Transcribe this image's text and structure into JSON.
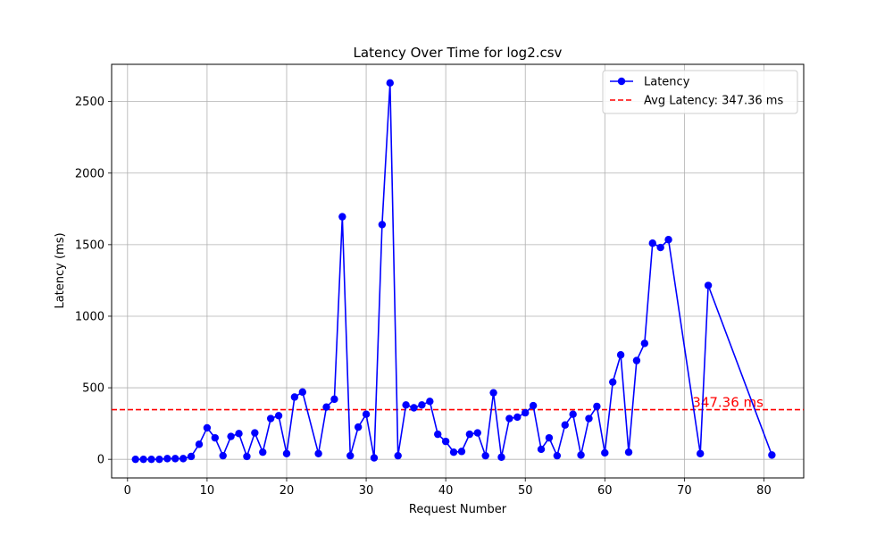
{
  "chart_data": {
    "type": "line",
    "title": "Latency Over Time for log2.csv",
    "xlabel": "Request Number",
    "ylabel": "Latency (ms)",
    "xlim": [
      -2,
      85
    ],
    "ylim": [
      -130,
      2760
    ],
    "xticks": [
      0,
      10,
      20,
      30,
      40,
      50,
      60,
      70,
      80
    ],
    "yticks": [
      0,
      500,
      1000,
      1500,
      2000,
      2500
    ],
    "grid": true,
    "legend_position": "top-right",
    "series": [
      {
        "name": "Latency",
        "color": "#0000ff",
        "marker": "circle",
        "x": [
          1,
          2,
          3,
          4,
          5,
          6,
          7,
          8,
          9,
          10,
          11,
          12,
          13,
          14,
          15,
          16,
          17,
          18,
          19,
          20,
          21,
          22,
          24,
          25,
          26,
          27,
          28,
          29,
          30,
          31,
          32,
          33,
          34,
          35,
          36,
          37,
          38,
          39,
          40,
          41,
          42,
          43,
          44,
          45,
          46,
          47,
          48,
          49,
          50,
          51,
          52,
          53,
          54,
          55,
          56,
          57,
          58,
          59,
          60,
          61,
          62,
          63,
          64,
          65,
          66,
          67,
          68,
          72,
          73,
          81
        ],
        "y": [
          0,
          0,
          0,
          0,
          5,
          5,
          5,
          20,
          105,
          220,
          150,
          25,
          160,
          180,
          20,
          185,
          50,
          285,
          305,
          40,
          435,
          470,
          40,
          365,
          420,
          1695,
          25,
          225,
          315,
          10,
          1640,
          2630,
          25,
          380,
          360,
          380,
          405,
          175,
          125,
          50,
          55,
          175,
          185,
          25,
          465,
          15,
          285,
          295,
          325,
          375,
          70,
          150,
          25,
          240,
          315,
          30,
          285,
          370,
          45,
          540,
          730,
          50,
          690,
          810,
          1510,
          1480,
          1535,
          40,
          1215,
          30
        ]
      }
    ],
    "reference_lines": [
      {
        "name": "Avg Latency: 347.36 ms",
        "value": 347.36,
        "color": "#ff0000",
        "style": "dashed",
        "annotation": "347.36 ms"
      }
    ]
  }
}
